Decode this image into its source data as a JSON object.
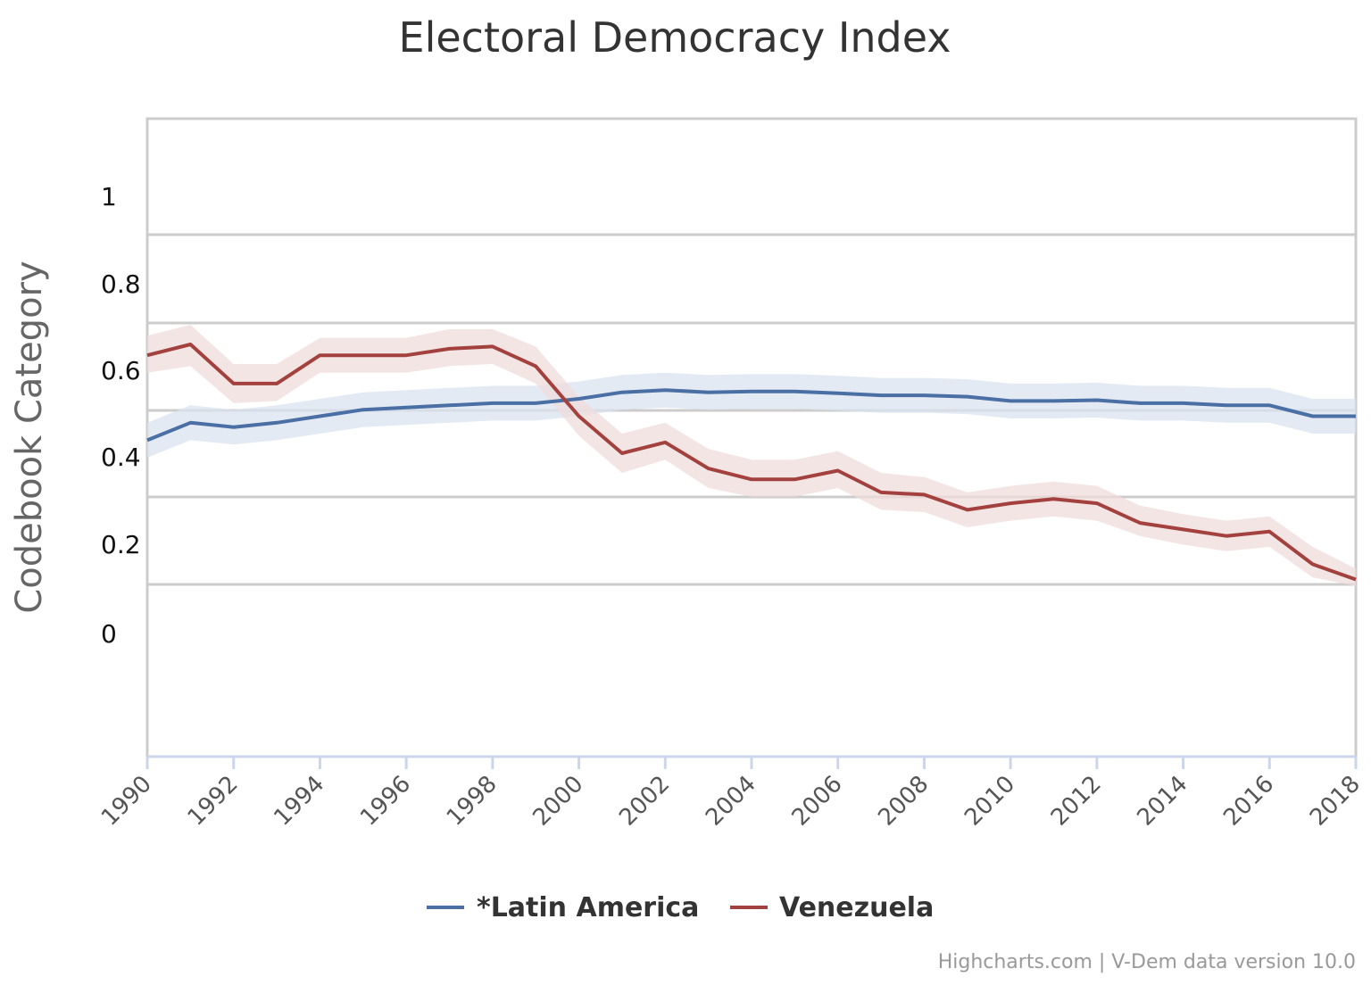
{
  "chart_data": {
    "type": "line",
    "title": "Electoral Democracy Index",
    "xlabel": "",
    "ylabel": "Codebook Category",
    "x": [
      1990,
      1991,
      1992,
      1993,
      1994,
      1995,
      1996,
      1997,
      1998,
      1999,
      2000,
      2001,
      2002,
      2003,
      2004,
      2005,
      2006,
      2007,
      2008,
      2009,
      2010,
      2011,
      2012,
      2013,
      2014,
      2015,
      2016,
      2017,
      2018
    ],
    "x_tick_labels": [
      "1990",
      "1992",
      "1994",
      "1996",
      "1998",
      "2000",
      "2002",
      "2004",
      "2006",
      "2008",
      "2010",
      "2012",
      "2014",
      "2016",
      "2018"
    ],
    "y_tick_labels": [
      "1",
      "0.8",
      "0.6",
      "0.4",
      "0.2",
      "0"
    ],
    "series": [
      {
        "name": "*Latin America",
        "color": "#4a6fa5",
        "band_color": "#dbe3ef",
        "values": [
          0.53,
          0.57,
          0.56,
          0.57,
          0.585,
          0.6,
          0.605,
          0.61,
          0.615,
          0.615,
          0.625,
          0.64,
          0.645,
          0.64,
          0.642,
          0.642,
          0.638,
          0.633,
          0.633,
          0.63,
          0.62,
          0.62,
          0.622,
          0.615,
          0.615,
          0.61,
          0.61,
          0.585,
          0.585
        ],
        "lower": [
          0.49,
          0.53,
          0.52,
          0.53,
          0.545,
          0.56,
          0.565,
          0.57,
          0.575,
          0.575,
          0.585,
          0.6,
          0.605,
          0.6,
          0.602,
          0.602,
          0.598,
          0.593,
          0.593,
          0.59,
          0.58,
          0.58,
          0.582,
          0.575,
          0.575,
          0.57,
          0.57,
          0.545,
          0.545
        ],
        "upper": [
          0.57,
          0.61,
          0.6,
          0.61,
          0.625,
          0.64,
          0.645,
          0.65,
          0.655,
          0.655,
          0.665,
          0.68,
          0.685,
          0.68,
          0.682,
          0.682,
          0.678,
          0.673,
          0.673,
          0.67,
          0.66,
          0.66,
          0.662,
          0.655,
          0.655,
          0.65,
          0.65,
          0.625,
          0.625
        ]
      },
      {
        "name": "Venezuela",
        "color": "#a3413e",
        "band_color": "#f0dcdc",
        "values": [
          0.725,
          0.75,
          0.66,
          0.66,
          0.725,
          0.725,
          0.725,
          0.74,
          0.745,
          0.7,
          0.585,
          0.5,
          0.525,
          0.465,
          0.44,
          0.44,
          0.46,
          0.41,
          0.405,
          0.37,
          0.385,
          0.395,
          0.385,
          0.34,
          0.325,
          0.31,
          0.32,
          0.245,
          0.21
        ],
        "lower": [
          0.685,
          0.7,
          0.615,
          0.62,
          0.685,
          0.685,
          0.685,
          0.7,
          0.705,
          0.66,
          0.54,
          0.455,
          0.485,
          0.42,
          0.4,
          0.4,
          0.42,
          0.37,
          0.365,
          0.33,
          0.345,
          0.355,
          0.345,
          0.31,
          0.29,
          0.275,
          0.285,
          0.215,
          0.195
        ],
        "upper": [
          0.77,
          0.795,
          0.705,
          0.705,
          0.765,
          0.765,
          0.765,
          0.785,
          0.785,
          0.745,
          0.63,
          0.545,
          0.57,
          0.51,
          0.485,
          0.485,
          0.505,
          0.455,
          0.445,
          0.41,
          0.425,
          0.435,
          0.425,
          0.38,
          0.36,
          0.345,
          0.355,
          0.285,
          0.235
        ]
      }
    ],
    "grid": true,
    "legend_position": "bottom-center"
  },
  "credits": "Highcharts.com | V-Dem data version 10.0"
}
